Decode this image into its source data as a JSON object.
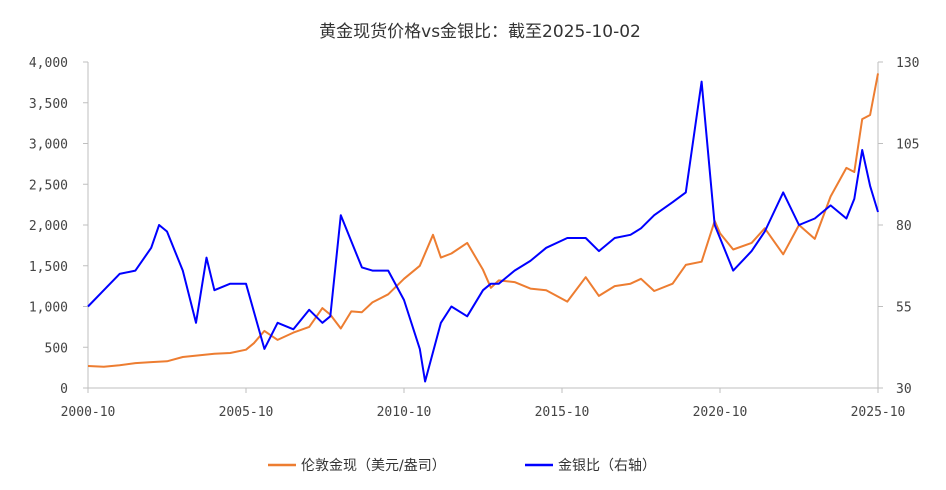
{
  "chart_data": {
    "type": "line",
    "title": "黄金现货价格vs金银比：截至2025-10-02",
    "x_tick_labels": [
      "2000-10",
      "2005-10",
      "2010-10",
      "2015-10",
      "2020-10",
      "2025-10"
    ],
    "x_range": [
      "2000-10",
      "2025-10"
    ],
    "y_left": {
      "ticks": [
        "4,000",
        "3,500",
        "3,000",
        "2,500",
        "2,000",
        "1,500",
        "1,000",
        "500",
        "0"
      ],
      "range": [
        0,
        4000
      ]
    },
    "y_right": {
      "ticks": [
        "130",
        "105",
        "80",
        "55",
        "30"
      ],
      "range": [
        30,
        130
      ]
    },
    "grid": false,
    "legend_position": "bottom",
    "colors": {
      "gold": "#ED7D31",
      "ratio": "#0000FF"
    },
    "series": [
      {
        "name": "伦敦金现（美元/盎司）",
        "axis": "left",
        "points": [
          [
            "2000-10",
            270
          ],
          [
            "2001-04",
            260
          ],
          [
            "2001-10",
            280
          ],
          [
            "2002-04",
            305
          ],
          [
            "2002-10",
            318
          ],
          [
            "2003-04",
            328
          ],
          [
            "2003-10",
            380
          ],
          [
            "2004-04",
            400
          ],
          [
            "2004-10",
            420
          ],
          [
            "2005-04",
            430
          ],
          [
            "2005-10",
            470
          ],
          [
            "2006-01",
            550
          ],
          [
            "2006-05",
            700
          ],
          [
            "2006-10",
            590
          ],
          [
            "2007-04",
            680
          ],
          [
            "2007-10",
            750
          ],
          [
            "2008-03",
            980
          ],
          [
            "2008-06",
            900
          ],
          [
            "2008-10",
            730
          ],
          [
            "2009-02",
            940
          ],
          [
            "2009-06",
            930
          ],
          [
            "2009-10",
            1050
          ],
          [
            "2010-04",
            1150
          ],
          [
            "2010-10",
            1340
          ],
          [
            "2011-04",
            1500
          ],
          [
            "2011-09",
            1880
          ],
          [
            "2011-12",
            1600
          ],
          [
            "2012-04",
            1650
          ],
          [
            "2012-10",
            1780
          ],
          [
            "2013-04",
            1450
          ],
          [
            "2013-07",
            1230
          ],
          [
            "2013-10",
            1320
          ],
          [
            "2014-04",
            1300
          ],
          [
            "2014-10",
            1220
          ],
          [
            "2015-04",
            1200
          ],
          [
            "2015-12",
            1060
          ],
          [
            "2016-07",
            1360
          ],
          [
            "2016-12",
            1130
          ],
          [
            "2017-06",
            1250
          ],
          [
            "2017-12",
            1280
          ],
          [
            "2018-04",
            1340
          ],
          [
            "2018-09",
            1190
          ],
          [
            "2019-04",
            1280
          ],
          [
            "2019-09",
            1510
          ],
          [
            "2020-03",
            1550
          ],
          [
            "2020-08",
            2050
          ],
          [
            "2020-10",
            1900
          ],
          [
            "2021-03",
            1700
          ],
          [
            "2021-10",
            1780
          ],
          [
            "2022-03",
            1960
          ],
          [
            "2022-10",
            1640
          ],
          [
            "2023-04",
            2000
          ],
          [
            "2023-10",
            1830
          ],
          [
            "2024-04",
            2350
          ],
          [
            "2024-10",
            2700
          ],
          [
            "2025-01",
            2650
          ],
          [
            "2025-04",
            3300
          ],
          [
            "2025-07",
            3350
          ],
          [
            "2025-10",
            3860
          ]
        ]
      },
      {
        "name": "金银比（右轴）",
        "axis": "right",
        "points": [
          [
            "2000-10",
            55
          ],
          [
            "2001-04",
            60
          ],
          [
            "2001-10",
            65
          ],
          [
            "2002-04",
            66
          ],
          [
            "2002-10",
            73
          ],
          [
            "2003-01",
            80
          ],
          [
            "2003-04",
            78
          ],
          [
            "2003-07",
            72
          ],
          [
            "2003-10",
            66
          ],
          [
            "2004-03",
            50
          ],
          [
            "2004-07",
            70
          ],
          [
            "2004-10",
            60
          ],
          [
            "2005-04",
            62
          ],
          [
            "2005-10",
            62
          ],
          [
            "2006-05",
            42
          ],
          [
            "2006-10",
            50
          ],
          [
            "2007-04",
            48
          ],
          [
            "2007-10",
            54
          ],
          [
            "2008-03",
            50
          ],
          [
            "2008-06",
            52
          ],
          [
            "2008-10",
            83
          ],
          [
            "2009-02",
            75
          ],
          [
            "2009-06",
            67
          ],
          [
            "2009-10",
            66
          ],
          [
            "2010-04",
            66
          ],
          [
            "2010-10",
            57
          ],
          [
            "2011-04",
            42
          ],
          [
            "2011-06",
            32
          ],
          [
            "2011-12",
            50
          ],
          [
            "2012-04",
            55
          ],
          [
            "2012-10",
            52
          ],
          [
            "2013-04",
            60
          ],
          [
            "2013-07",
            62
          ],
          [
            "2013-10",
            62
          ],
          [
            "2014-04",
            66
          ],
          [
            "2014-10",
            69
          ],
          [
            "2015-04",
            73
          ],
          [
            "2015-12",
            76
          ],
          [
            "2016-07",
            76
          ],
          [
            "2016-12",
            72
          ],
          [
            "2017-06",
            76
          ],
          [
            "2017-12",
            77
          ],
          [
            "2018-04",
            79
          ],
          [
            "2018-09",
            83
          ],
          [
            "2019-04",
            87
          ],
          [
            "2019-09",
            90
          ],
          [
            "2020-03",
            124
          ],
          [
            "2020-08",
            80
          ],
          [
            "2020-10",
            76
          ],
          [
            "2021-03",
            66
          ],
          [
            "2021-10",
            72
          ],
          [
            "2022-03",
            78
          ],
          [
            "2022-10",
            90
          ],
          [
            "2023-04",
            80
          ],
          [
            "2023-10",
            82
          ],
          [
            "2024-04",
            86
          ],
          [
            "2024-10",
            82
          ],
          [
            "2025-01",
            88
          ],
          [
            "2025-04",
            103
          ],
          [
            "2025-07",
            92
          ],
          [
            "2025-10",
            84
          ]
        ]
      }
    ]
  }
}
